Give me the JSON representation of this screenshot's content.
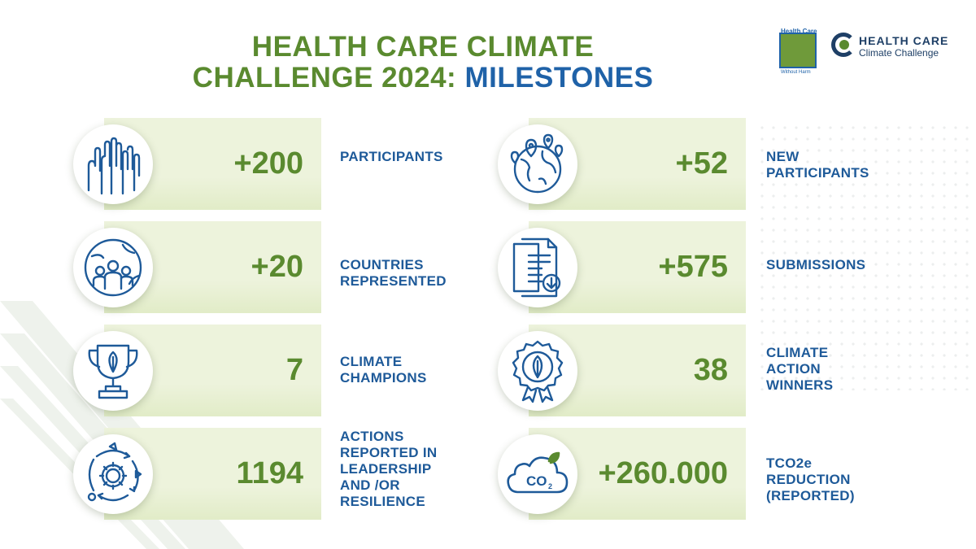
{
  "title": {
    "line1": "HEALTH CARE CLIMATE",
    "line2_green": "CHALLENGE 2024:",
    "line2_blue": "MILESTONES"
  },
  "logos": {
    "hcwh_top": "Health Care",
    "hcwh_bottom": "Without Harm",
    "hccc_line1": "HEALTH CARE",
    "hccc_line2": "Climate Challenge"
  },
  "colors": {
    "green": "#5a8a2f",
    "blue": "#1e5a99",
    "panel": "#edf3dc"
  },
  "milestones": [
    {
      "value": "+200",
      "label_lines": [
        "PARTICIPANTS"
      ],
      "icon": "raised-hands-icon"
    },
    {
      "value": "+52",
      "label_lines": [
        "NEW",
        "PARTICIPANTS"
      ],
      "icon": "globe-pins-icon"
    },
    {
      "value": "+20",
      "label_lines": [
        "COUNTRIES",
        "REPRESENTED"
      ],
      "icon": "globe-people-icon"
    },
    {
      "value": "+575",
      "label_lines": [
        "SUBMISSIONS"
      ],
      "icon": "documents-download-icon"
    },
    {
      "value": "7",
      "label_lines": [
        "CLIMATE",
        "CHAMPIONS"
      ],
      "icon": "trophy-leaf-icon"
    },
    {
      "value": "38",
      "label_lines": [
        "CLIMATE",
        "ACTION",
        "WINNERS"
      ],
      "icon": "award-badge-icon"
    },
    {
      "value": "1194",
      "label_lines": [
        "ACTIONS",
        "REPORTED IN",
        "LEADERSHIP",
        "AND /OR",
        "RESILIENCE"
      ],
      "icon": "cycle-gear-icon"
    },
    {
      "value": "+260.000",
      "label_lines": [
        "TCO2e",
        "REDUCTION",
        "(REPORTED)"
      ],
      "icon": "co2-cloud-icon"
    }
  ],
  "icons": {
    "co2_text": "CO",
    "co2_sub": "2"
  }
}
